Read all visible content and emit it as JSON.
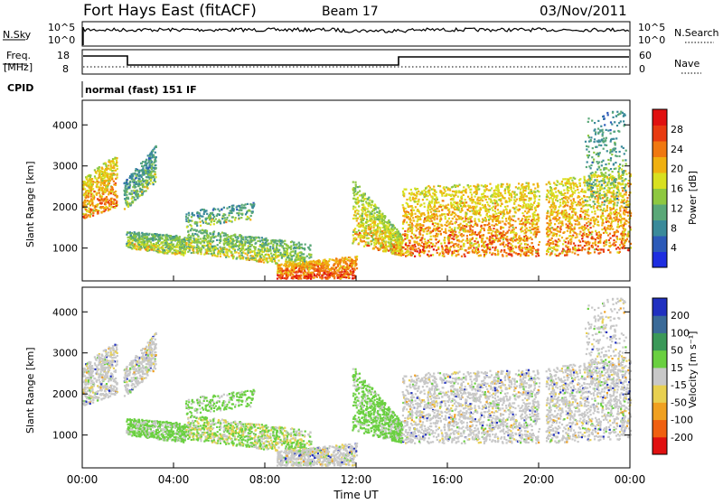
{
  "header": {
    "station": "Fort Hays East (fitACF)",
    "beam": "Beam 17",
    "date": "03/Nov/2011"
  },
  "strip": {
    "nsky_label": "N.Sky",
    "nsky_ticks": [
      "10^5",
      "10^0"
    ],
    "nsearch_label": "N.Search",
    "nsearch_ticks": [
      "10^5",
      "10^0"
    ],
    "freq_label_1": "Freq.",
    "freq_label_2": "[MHz]",
    "freq_ticks": [
      "18",
      "8"
    ],
    "nave_label": "Nave",
    "nave_ticks": [
      "60",
      "0"
    ],
    "cpid_label": "CPID",
    "cpid_text": "normal (fast) 151 IF"
  },
  "chart_data": [
    {
      "type": "heatmap",
      "name": "power-panel",
      "ylabel": "Slant Range [km]",
      "ylim": [
        200,
        4600
      ],
      "yticks": [
        "1000",
        "2000",
        "3000",
        "4000"
      ],
      "colorbar_label": "Power [dB]",
      "colorbar_ticks": [
        "4",
        "8",
        "12",
        "16",
        "20",
        "24",
        "28"
      ],
      "colorbar_colors": [
        "#1e2ee0",
        "#2c5ab8",
        "#3a8a9a",
        "#5aa878",
        "#8ec840",
        "#d8e020",
        "#f0b010",
        "#f07810",
        "#e83a10",
        "#e01010"
      ]
    },
    {
      "type": "heatmap",
      "name": "velocity-panel",
      "ylabel": "Slant Range [km]",
      "ylim": [
        200,
        4600
      ],
      "yticks": [
        "1000",
        "2000",
        "3000",
        "4000"
      ],
      "colorbar_label": "Velocity [m s⁻¹]",
      "colorbar_ticks": [
        "200",
        "100",
        "50",
        "15",
        "-15",
        "-50",
        "-100",
        "-200"
      ],
      "colorbar_colors": [
        "#2030c0",
        "#3a6a98",
        "#3a9858",
        "#6ad040",
        "#c8c8c8",
        "#e8d050",
        "#f0a020",
        "#f06010",
        "#e01010"
      ]
    }
  ],
  "xaxis": {
    "title": "Time UT",
    "ticks": [
      "00:00",
      "04:00",
      "08:00",
      "12:00",
      "16:00",
      "20:00",
      "00:00"
    ]
  },
  "colors": {
    "freq_line": "#000000",
    "panel_border": "#000000",
    "velocity_gray": "#c8c8c8"
  }
}
